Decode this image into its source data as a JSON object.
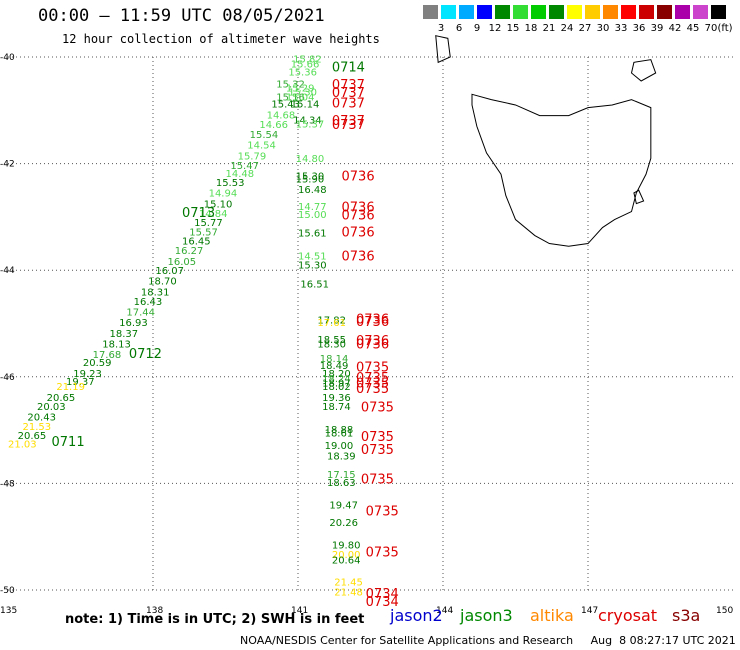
{
  "title": "00:00 – 11:59 UTC 08/05/2021",
  "subtitle": "12 hour collection of altimeter wave heights",
  "legend": {
    "colors": [
      "#808080",
      "#00e5ff",
      "#00aaff",
      "#0000ff",
      "#008800",
      "#33dd33",
      "#00cc00",
      "#008800",
      "#ffff00",
      "#ffcc00",
      "#ff8800",
      "#ff0000",
      "#cc0000",
      "#880000",
      "#aa00aa",
      "#cc44cc",
      "#000000"
    ],
    "ticks": [
      "3",
      "6",
      "9",
      "12",
      "15",
      "18",
      "21",
      "24",
      "27",
      "30",
      "33",
      "36",
      "39",
      "42",
      "45",
      "70"
    ],
    "unit": "(ft)"
  },
  "lat_labels": [
    "-40",
    "-42",
    "-44",
    "-46",
    "-48",
    "-50"
  ],
  "lon_labels": [
    "135",
    "138",
    "141",
    "144",
    "147",
    "150"
  ],
  "track_labels": [
    {
      "text": "0714",
      "lon": 141.7,
      "lat": -40.27,
      "color": "#007700"
    },
    {
      "text": "0737",
      "lon": 141.7,
      "lat": -40.6,
      "color": "#dd0000"
    },
    {
      "text": "0737",
      "lon": 141.7,
      "lat": -40.75,
      "color": "#dd0000"
    },
    {
      "text": "0737",
      "lon": 141.7,
      "lat": -40.95,
      "color": "#dd0000"
    },
    {
      "text": "0737",
      "lon": 141.7,
      "lat": -41.28,
      "color": "#dd0000"
    },
    {
      "text": "0737",
      "lon": 141.7,
      "lat": -41.35,
      "color": "#dd0000"
    },
    {
      "text": "0736",
      "lon": 141.9,
      "lat": -42.32,
      "color": "#dd0000"
    },
    {
      "text": "0713",
      "lon": 138.6,
      "lat": -43.0,
      "color": "#007700"
    },
    {
      "text": "0736",
      "lon": 141.9,
      "lat": -42.9,
      "color": "#dd0000"
    },
    {
      "text": "0736",
      "lon": 141.9,
      "lat": -43.05,
      "color": "#dd0000"
    },
    {
      "text": "0736",
      "lon": 141.9,
      "lat": -43.37,
      "color": "#dd0000"
    },
    {
      "text": "0736",
      "lon": 141.9,
      "lat": -43.82,
      "color": "#dd0000"
    },
    {
      "text": "0736",
      "lon": 142.2,
      "lat": -45.0,
      "color": "#dd0000"
    },
    {
      "text": "0736",
      "lon": 142.2,
      "lat": -45.05,
      "color": "#dd0000"
    },
    {
      "text": "0736",
      "lon": 142.2,
      "lat": -45.4,
      "color": "#dd0000"
    },
    {
      "text": "0736",
      "lon": 142.2,
      "lat": -45.47,
      "color": "#dd0000"
    },
    {
      "text": "0712",
      "lon": 137.5,
      "lat": -45.65,
      "color": "#007700"
    },
    {
      "text": "0735",
      "lon": 142.2,
      "lat": -45.9,
      "color": "#dd0000"
    },
    {
      "text": "0735",
      "lon": 142.2,
      "lat": -46.1,
      "color": "#dd0000"
    },
    {
      "text": "0735",
      "lon": 142.2,
      "lat": -46.2,
      "color": "#dd0000"
    },
    {
      "text": "0735",
      "lon": 142.2,
      "lat": -46.3,
      "color": "#dd0000"
    },
    {
      "text": "0735",
      "lon": 142.3,
      "lat": -46.65,
      "color": "#dd0000"
    },
    {
      "text": "0735",
      "lon": 142.3,
      "lat": -47.2,
      "color": "#dd0000"
    },
    {
      "text": "0735",
      "lon": 142.3,
      "lat": -47.45,
      "color": "#dd0000"
    },
    {
      "text": "0711",
      "lon": 135.9,
      "lat": -47.3,
      "color": "#007700"
    },
    {
      "text": "0735",
      "lon": 142.3,
      "lat": -48.0,
      "color": "#dd0000"
    },
    {
      "text": "0735",
      "lon": 142.4,
      "lat": -48.6,
      "color": "#dd0000"
    },
    {
      "text": "0735",
      "lon": 142.4,
      "lat": -49.37,
      "color": "#dd0000"
    },
    {
      "text": "0734",
      "lon": 142.4,
      "lat": -50.15,
      "color": "#dd0000"
    },
    {
      "text": "0734",
      "lon": 142.4,
      "lat": -50.3,
      "color": "#dd0000"
    }
  ],
  "obs": [
    {
      "text": "15.82",
      "lon": 140.9,
      "lat": -40.1,
      "color": "#55dd55"
    },
    {
      "text": "15.66",
      "lon": 140.85,
      "lat": -40.2,
      "color": "#55dd55"
    },
    {
      "text": "15.36",
      "lon": 140.8,
      "lat": -40.35,
      "color": "#55dd55"
    },
    {
      "text": "15.32",
      "lon": 140.55,
      "lat": -40.57,
      "color": "#33aa33"
    },
    {
      "text": "15.29",
      "lon": 140.75,
      "lat": -40.65,
      "color": "#55dd55"
    },
    {
      "text": "15.30",
      "lon": 140.8,
      "lat": -40.72,
      "color": "#55dd55"
    },
    {
      "text": "15.16",
      "lon": 140.55,
      "lat": -40.82,
      "color": "#33aa33"
    },
    {
      "text": "15.04",
      "lon": 140.75,
      "lat": -40.82,
      "color": "#55dd55"
    },
    {
      "text": "15.43",
      "lon": 140.45,
      "lat": -40.95,
      "color": "#007700"
    },
    {
      "text": "15.14",
      "lon": 140.85,
      "lat": -40.95,
      "color": "#007700"
    },
    {
      "text": "14.68",
      "lon": 140.35,
      "lat": -41.15,
      "color": "#55dd55"
    },
    {
      "text": "14.34",
      "lon": 140.9,
      "lat": -41.25,
      "color": "#007700"
    },
    {
      "text": "14.66",
      "lon": 140.2,
      "lat": -41.33,
      "color": "#55dd55"
    },
    {
      "text": "15.37",
      "lon": 140.95,
      "lat": -41.32,
      "color": "#55dd55"
    },
    {
      "text": "15.54",
      "lon": 140.0,
      "lat": -41.52,
      "color": "#33aa33"
    },
    {
      "text": "14.54",
      "lon": 139.95,
      "lat": -41.72,
      "color": "#55dd55"
    },
    {
      "text": "15.79",
      "lon": 139.75,
      "lat": -41.92,
      "color": "#55dd55"
    },
    {
      "text": "14.80",
      "lon": 140.95,
      "lat": -41.97,
      "color": "#55dd55"
    },
    {
      "text": "15.47",
      "lon": 139.6,
      "lat": -42.1,
      "color": "#33aa33"
    },
    {
      "text": "14.48",
      "lon": 139.5,
      "lat": -42.25,
      "color": "#55dd55"
    },
    {
      "text": "15.30",
      "lon": 140.95,
      "lat": -42.3,
      "color": "#007700"
    },
    {
      "text": "15.90",
      "lon": 140.95,
      "lat": -42.35,
      "color": "#007700"
    },
    {
      "text": "15.53",
      "lon": 139.3,
      "lat": -42.42,
      "color": "#007700"
    },
    {
      "text": "16.48",
      "lon": 141.0,
      "lat": -42.55,
      "color": "#007700"
    },
    {
      "text": "14.94",
      "lon": 139.15,
      "lat": -42.62,
      "color": "#55dd55"
    },
    {
      "text": "15.10",
      "lon": 139.05,
      "lat": -42.82,
      "color": "#007700"
    },
    {
      "text": "14.77",
      "lon": 141.0,
      "lat": -42.87,
      "color": "#55dd55"
    },
    {
      "text": "14.84",
      "lon": 138.95,
      "lat": -43.0,
      "color": "#55dd55"
    },
    {
      "text": "15.00",
      "lon": 141.0,
      "lat": -43.02,
      "color": "#55dd55"
    },
    {
      "text": "15.77",
      "lon": 138.85,
      "lat": -43.17,
      "color": "#007700"
    },
    {
      "text": "15.57",
      "lon": 138.75,
      "lat": -43.35,
      "color": "#33aa33"
    },
    {
      "text": "15.61",
      "lon": 141.0,
      "lat": -43.37,
      "color": "#007700"
    },
    {
      "text": "16.45",
      "lon": 138.6,
      "lat": -43.52,
      "color": "#007700"
    },
    {
      "text": "16.27",
      "lon": 138.45,
      "lat": -43.7,
      "color": "#33aa33"
    },
    {
      "text": "14.51",
      "lon": 141.0,
      "lat": -43.8,
      "color": "#55dd55"
    },
    {
      "text": "16.05",
      "lon": 138.3,
      "lat": -43.9,
      "color": "#33aa33"
    },
    {
      "text": "15.30",
      "lon": 141.0,
      "lat": -43.97,
      "color": "#007700"
    },
    {
      "text": "16.07",
      "lon": 138.05,
      "lat": -44.07,
      "color": "#007700"
    },
    {
      "text": "18.70",
      "lon": 137.9,
      "lat": -44.27,
      "color": "#007700"
    },
    {
      "text": "16.51",
      "lon": 141.05,
      "lat": -44.32,
      "color": "#007700"
    },
    {
      "text": "18.31",
      "lon": 137.75,
      "lat": -44.47,
      "color": "#007700"
    },
    {
      "text": "16.43",
      "lon": 137.6,
      "lat": -44.65,
      "color": "#007700"
    },
    {
      "text": "17.44",
      "lon": 137.45,
      "lat": -44.85,
      "color": "#33aa33"
    },
    {
      "text": "17.82",
      "lon": 141.4,
      "lat": -45.0,
      "color": "#007700"
    },
    {
      "text": "17.61",
      "lon": 141.4,
      "lat": -45.05,
      "color": "#ffdd00"
    },
    {
      "text": "16.93",
      "lon": 137.3,
      "lat": -45.05,
      "color": "#007700"
    },
    {
      "text": "18.37",
      "lon": 137.1,
      "lat": -45.25,
      "color": "#007700"
    },
    {
      "text": "18.55",
      "lon": 141.4,
      "lat": -45.37,
      "color": "#007700"
    },
    {
      "text": "18.30",
      "lon": 141.4,
      "lat": -45.45,
      "color": "#007700"
    },
    {
      "text": "18.13",
      "lon": 136.95,
      "lat": -45.45,
      "color": "#007700"
    },
    {
      "text": "17.68",
      "lon": 136.75,
      "lat": -45.65,
      "color": "#33aa33"
    },
    {
      "text": "18.14",
      "lon": 141.45,
      "lat": -45.72,
      "color": "#33aa33"
    },
    {
      "text": "20.59",
      "lon": 136.55,
      "lat": -45.8,
      "color": "#007700"
    },
    {
      "text": "18.49",
      "lon": 141.45,
      "lat": -45.85,
      "color": "#007700"
    },
    {
      "text": "19.23",
      "lon": 136.35,
      "lat": -46.0,
      "color": "#007700"
    },
    {
      "text": "18.20",
      "lon": 141.5,
      "lat": -46.0,
      "color": "#007700"
    },
    {
      "text": "19.37",
      "lon": 136.2,
      "lat": -46.15,
      "color": "#007700"
    },
    {
      "text": "18.24",
      "lon": 141.5,
      "lat": -46.1,
      "color": "#33aa33"
    },
    {
      "text": "18.97",
      "lon": 141.5,
      "lat": -46.18,
      "color": "#007700"
    },
    {
      "text": "21.19",
      "lon": 136.0,
      "lat": -46.25,
      "color": "#ffdd00"
    },
    {
      "text": "18.02",
      "lon": 141.5,
      "lat": -46.25,
      "color": "#007700"
    },
    {
      "text": "20.65",
      "lon": 135.8,
      "lat": -46.45,
      "color": "#007700"
    },
    {
      "text": "19.36",
      "lon": 141.5,
      "lat": -46.45,
      "color": "#007700"
    },
    {
      "text": "20.03",
      "lon": 135.6,
      "lat": -46.62,
      "color": "#007700"
    },
    {
      "text": "18.74",
      "lon": 141.5,
      "lat": -46.62,
      "color": "#007700"
    },
    {
      "text": "20.43",
      "lon": 135.4,
      "lat": -46.82,
      "color": "#007700"
    },
    {
      "text": "21.53",
      "lon": 135.3,
      "lat": -47.0,
      "color": "#ffdd00"
    },
    {
      "text": "18.88",
      "lon": 141.55,
      "lat": -47.05,
      "color": "#007700"
    },
    {
      "text": "18.61",
      "lon": 141.55,
      "lat": -47.12,
      "color": "#007700"
    },
    {
      "text": "20.65",
      "lon": 135.2,
      "lat": -47.17,
      "color": "#007700"
    },
    {
      "text": "21.03",
      "lon": 135.0,
      "lat": -47.33,
      "color": "#ffdd00"
    },
    {
      "text": "19.00",
      "lon": 141.55,
      "lat": -47.35,
      "color": "#007700"
    },
    {
      "text": "18.39",
      "lon": 141.6,
      "lat": -47.55,
      "color": "#007700"
    },
    {
      "text": "17.15",
      "lon": 141.6,
      "lat": -47.9,
      "color": "#33aa33"
    },
    {
      "text": "18.63",
      "lon": 141.6,
      "lat": -48.05,
      "color": "#007700"
    },
    {
      "text": "19.47",
      "lon": 141.65,
      "lat": -48.47,
      "color": "#007700"
    },
    {
      "text": "20.26",
      "lon": 141.65,
      "lat": -48.8,
      "color": "#007700"
    },
    {
      "text": "19.80",
      "lon": 141.7,
      "lat": -49.22,
      "color": "#007700"
    },
    {
      "text": "20.00",
      "lon": 141.7,
      "lat": -49.4,
      "color": "#ffdd00"
    },
    {
      "text": "20.64",
      "lon": 141.7,
      "lat": -49.5,
      "color": "#007700"
    },
    {
      "text": "21.45",
      "lon": 141.75,
      "lat": -49.92,
      "color": "#ffdd00"
    },
    {
      "text": "21.48",
      "lon": 141.75,
      "lat": -50.1,
      "color": "#ffdd00"
    }
  ],
  "note": "note:  1) Time is in UTC;  2) SWH is in feet",
  "satellites": [
    {
      "name": "jason2",
      "color": "#0000cc"
    },
    {
      "name": "jason3",
      "color": "#008800"
    },
    {
      "name": "altika",
      "color": "#ff8800"
    },
    {
      "name": "cryosat",
      "color": "#dd0000"
    },
    {
      "name": "s3a",
      "color": "#880000"
    }
  ],
  "footer": "NOAA/NESDIS Center for Satellite Applications and Research     Aug  8 08:27:17 UTC 2021"
}
